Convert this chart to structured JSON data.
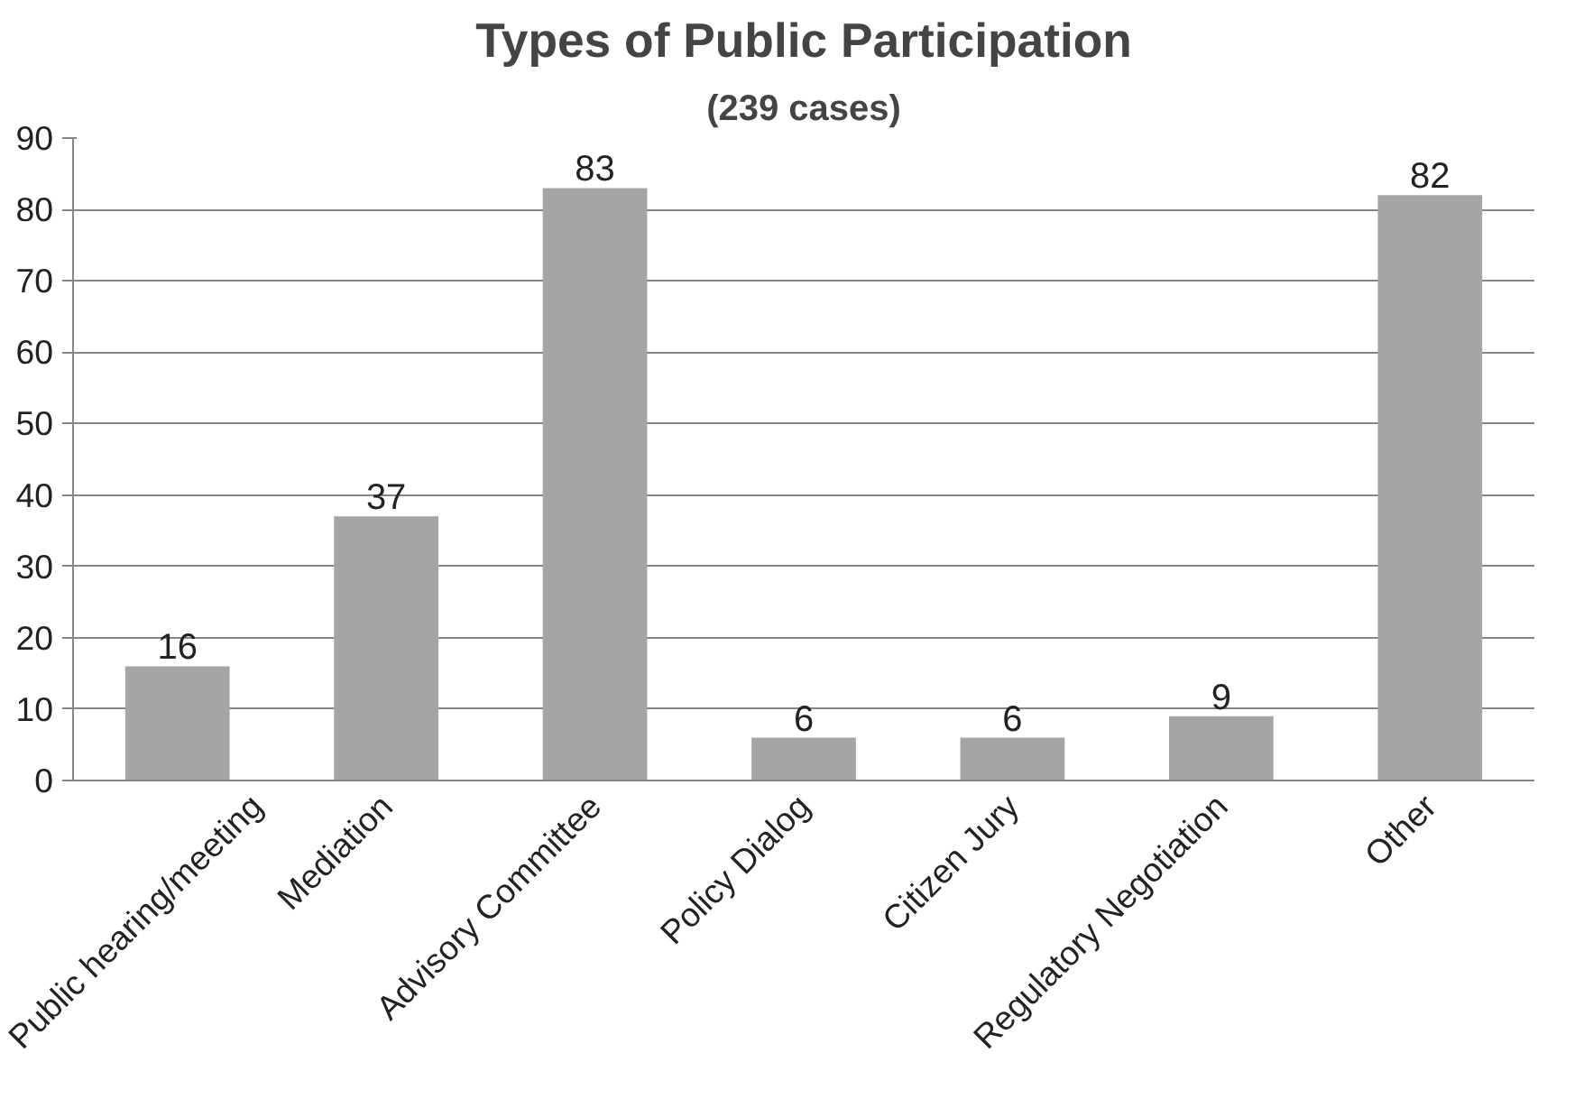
{
  "chart_data": {
    "type": "bar",
    "title": "Types of Public Participation",
    "subtitle": "(239 cases)",
    "categories": [
      "Public hearing/meeting",
      "Mediation",
      "Advisory Committee",
      "Policy Dialog",
      "Citizen Jury",
      "Regulatory Negotiation",
      "Other"
    ],
    "values": [
      16,
      37,
      83,
      6,
      6,
      9,
      82
    ],
    "color": "#a5a5a5",
    "ylim": [
      0,
      90
    ],
    "yticks": [
      0,
      10,
      20,
      30,
      40,
      50,
      60,
      70,
      80,
      90
    ],
    "grid": "y",
    "data_labels": true
  }
}
